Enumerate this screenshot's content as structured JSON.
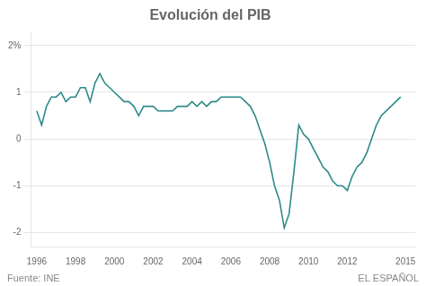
{
  "chart_data": {
    "type": "line",
    "title": "Evolución del PIB",
    "annotations": [
      "Fuente: INE",
      "EL ESPAÑOL"
    ],
    "color": "#2d8a8a",
    "x": [
      1996,
      1996.25,
      1996.5,
      1996.75,
      1997,
      1997.25,
      1997.5,
      1997.75,
      1998,
      1998.25,
      1998.5,
      1998.75,
      1999,
      1999.25,
      1999.5,
      1999.75,
      2000,
      2000.25,
      2000.5,
      2000.75,
      2001,
      2001.25,
      2001.5,
      2001.75,
      2002,
      2002.25,
      2002.5,
      2002.75,
      2003,
      2003.25,
      2003.5,
      2003.75,
      2004,
      2004.25,
      2004.5,
      2004.75,
      2005,
      2005.25,
      2005.5,
      2005.75,
      2006,
      2006.25,
      2006.5,
      2006.75,
      2007,
      2007.25,
      2007.5,
      2007.75,
      2008,
      2008.25,
      2008.5,
      2008.75,
      2009,
      2009.25,
      2009.5,
      2009.75,
      2010,
      2010.25,
      2010.5,
      2010.75,
      2011,
      2011.25,
      2011.5,
      2011.75,
      2012,
      2012.25,
      2012.5,
      2012.75,
      2013,
      2013.25,
      2013.5,
      2013.75,
      2014,
      2014.25,
      2014.5,
      2014.75
    ],
    "values": [
      0.6,
      0.3,
      0.7,
      0.9,
      0.9,
      1.0,
      0.8,
      0.9,
      0.9,
      1.1,
      1.1,
      0.8,
      1.2,
      1.4,
      1.2,
      1.1,
      1.0,
      0.9,
      0.8,
      0.8,
      0.7,
      0.5,
      0.7,
      0.7,
      0.7,
      0.6,
      0.6,
      0.6,
      0.6,
      0.7,
      0.7,
      0.7,
      0.8,
      0.7,
      0.8,
      0.7,
      0.8,
      0.8,
      0.9,
      0.9,
      0.9,
      0.9,
      0.9,
      0.8,
      0.7,
      0.5,
      0.2,
      -0.1,
      -0.5,
      -1.0,
      -1.3,
      -1.9,
      -1.6,
      -0.7,
      0.3,
      0.1,
      0.0,
      -0.2,
      -0.4,
      -0.6,
      -0.7,
      -0.9,
      -1.0,
      -1.0,
      -1.1,
      -0.8,
      -0.6,
      -0.5,
      -0.3,
      0.0,
      0.3,
      0.5,
      0.6,
      0.7,
      0.8,
      0.9
    ],
    "xlim": [
      1995.7,
      2015.5
    ],
    "xticks": [
      1996,
      1998,
      2000,
      2002,
      2004,
      2006,
      2008,
      2010,
      2012,
      2015
    ],
    "ylim": [
      -2.3,
      2.3
    ],
    "yticks": [
      -2,
      -1,
      0,
      1,
      {
        "value": 2,
        "label": "2%"
      }
    ],
    "grid": true
  }
}
